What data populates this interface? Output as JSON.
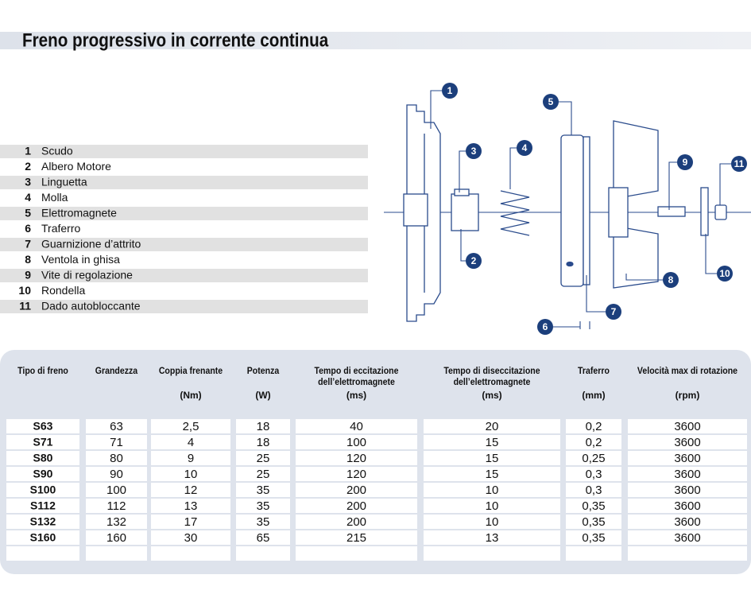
{
  "header": {
    "title": "Freno progressivo in corrente continua"
  },
  "parts": [
    {
      "number": "1",
      "label": "Scudo"
    },
    {
      "number": "2",
      "label": "Albero Motore"
    },
    {
      "number": "3",
      "label": "Linguetta"
    },
    {
      "number": "4",
      "label": "Molla"
    },
    {
      "number": "5",
      "label": "Elettromagnete"
    },
    {
      "number": "6",
      "label": "Traferro"
    },
    {
      "number": "7",
      "label": "Guarnizione d’attrito"
    },
    {
      "number": "8",
      "label": "Ventola in ghisa"
    },
    {
      "number": "9",
      "label": "Vite di regolazione"
    },
    {
      "number": "10",
      "label": "Rondella"
    },
    {
      "number": "11",
      "label": "Dado autobloccante"
    }
  ],
  "table": {
    "columns": [
      {
        "title": [
          "Tipo di freno"
        ]
      },
      {
        "title": [
          "Grandezza"
        ]
      },
      {
        "title": [
          "Coppia frenante"
        ],
        "unit": "(Nm)"
      },
      {
        "title": [
          "Potenza"
        ],
        "unit": "(W)"
      },
      {
        "title": [
          "Tempo di eccitazione",
          "dell’elettromagnete"
        ],
        "unit": "(ms)"
      },
      {
        "title": [
          "Tempo di diseccitazione",
          "dell’elettromagnete"
        ],
        "unit": "(ms)"
      },
      {
        "title": [
          "Traferro"
        ],
        "unit": "(mm)"
      },
      {
        "title": [
          "Velocità max di rotazione"
        ],
        "unit": "(rpm)"
      }
    ],
    "rows": [
      [
        "S63",
        "63",
        "2,5",
        "18",
        "40",
        "20",
        "0,2",
        "3600"
      ],
      [
        "S71",
        "71",
        "4",
        "18",
        "100",
        "15",
        "0,2",
        "3600"
      ],
      [
        "S80",
        "80",
        "9",
        "25",
        "120",
        "15",
        "0,25",
        "3600"
      ],
      [
        "S90",
        "90",
        "10",
        "25",
        "120",
        "15",
        "0,3",
        "3600"
      ],
      [
        "S100",
        "100",
        "12",
        "35",
        "200",
        "10",
        "0,3",
        "3600"
      ],
      [
        "S112",
        "112",
        "13",
        "35",
        "200",
        "10",
        "0,35",
        "3600"
      ],
      [
        "S132",
        "132",
        "17",
        "35",
        "200",
        "10",
        "0,35",
        "3600"
      ],
      [
        "S160",
        "160",
        "30",
        "65",
        "215",
        "13",
        "0,35",
        "3600"
      ]
    ]
  }
}
